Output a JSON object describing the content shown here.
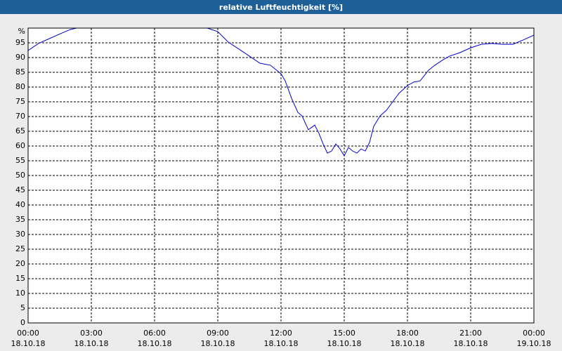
{
  "chart_data": {
    "type": "line",
    "title": "relative Luftfeuchtigkeit [%]",
    "ylabel": "%",
    "x": [
      0,
      0.5,
      1,
      1.5,
      2,
      2.3,
      8.5,
      9,
      9.5,
      10,
      10.5,
      11,
      11.5,
      12,
      12.2,
      12.5,
      12.8,
      13,
      13.3,
      13.6,
      13.8,
      14,
      14.2,
      14.4,
      14.6,
      14.8,
      15,
      15.2,
      15.4,
      15.6,
      15.8,
      16,
      16.2,
      16.4,
      16.7,
      17,
      17.3,
      17.6,
      18,
      18.3,
      18.6,
      19,
      19.3,
      19.7,
      20,
      20.5,
      21,
      21.5,
      22,
      22.5,
      23,
      23.5,
      24
    ],
    "series": [
      {
        "name": "relative Luftfeuchtigkeit",
        "color": "#0000cc",
        "values": [
          92.4,
          94.8,
          96.4,
          98,
          99.5,
          100,
          100,
          98.8,
          95.2,
          92.9,
          90.5,
          88.1,
          87.4,
          84.5,
          82.1,
          76.2,
          71.4,
          70.2,
          65.5,
          67.1,
          64.3,
          60.7,
          57.6,
          58.3,
          60.7,
          59,
          56.7,
          59.5,
          58.3,
          57.6,
          59,
          58.3,
          61.2,
          66.7,
          70.2,
          72.1,
          75,
          77.9,
          80.5,
          81.7,
          82.1,
          85.7,
          87.4,
          89.3,
          90.5,
          91.7,
          93.3,
          94.5,
          94.8,
          94.5,
          94.5,
          96,
          97.6
        ]
      }
    ],
    "xlim": [
      0,
      24
    ],
    "xticks": [
      {
        "value": 0,
        "label": "00:00",
        "date": "18.10.18"
      },
      {
        "value": 3,
        "label": "03:00",
        "date": "18.10.18"
      },
      {
        "value": 6,
        "label": "06:00",
        "date": "18.10.18"
      },
      {
        "value": 9,
        "label": "09:00",
        "date": "18.10.18"
      },
      {
        "value": 12,
        "label": "12:00",
        "date": "18.10.18"
      },
      {
        "value": 15,
        "label": "15:00",
        "date": "18.10.18"
      },
      {
        "value": 18,
        "label": "18:00",
        "date": "18.10.18"
      },
      {
        "value": 21,
        "label": "21:00",
        "date": "18.10.18"
      },
      {
        "value": 24,
        "label": "00:00",
        "date": "19.10.18"
      }
    ],
    "ylim": [
      0,
      100
    ],
    "yticks": [
      0,
      5,
      10,
      15,
      20,
      25,
      30,
      35,
      40,
      45,
      50,
      55,
      60,
      65,
      70,
      75,
      80,
      85,
      90,
      95
    ],
    "grid": true
  }
}
